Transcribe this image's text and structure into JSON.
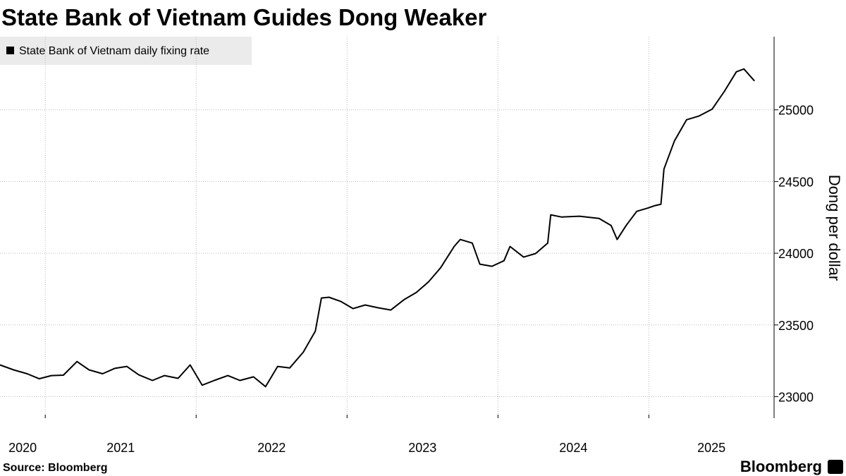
{
  "chart_data": {
    "type": "line",
    "title": "State Bank of Vietnam Guides Dong Weaker",
    "y_axis_label": "Dong per dollar",
    "source": "Source: Bloomberg",
    "brand": "Bloomberg",
    "grid": true,
    "legend": "top-left",
    "xlim": [
      2020.7,
      2025.83
    ],
    "xticks": [
      2020,
      2021,
      2022,
      2023,
      2024,
      2025
    ],
    "ylim": [
      22850,
      25510
    ],
    "yticks": [
      23000,
      23500,
      24000,
      24500,
      25000
    ],
    "x": [
      2020.7,
      2020.79,
      2020.88,
      2020.96,
      2021.04,
      2021.12,
      2021.21,
      2021.29,
      2021.38,
      2021.46,
      2021.54,
      2021.62,
      2021.71,
      2021.79,
      2021.88,
      2021.96,
      2022.04,
      2022.12,
      2022.21,
      2022.29,
      2022.38,
      2022.46,
      2022.54,
      2022.62,
      2022.71,
      2022.79,
      2022.83,
      2022.88,
      2022.96,
      2023.04,
      2023.12,
      2023.21,
      2023.29,
      2023.38,
      2023.46,
      2023.54,
      2023.62,
      2023.71,
      2023.75,
      2023.83,
      2023.88,
      2023.96,
      2024.04,
      2024.08,
      2024.17,
      2024.25,
      2024.33,
      2024.35,
      2024.42,
      2024.54,
      2024.67,
      2024.75,
      2024.79,
      2024.85,
      2024.92,
      2025.0,
      2025.04,
      2025.08,
      2025.1,
      2025.17,
      2025.25,
      2025.33,
      2025.42,
      2025.5,
      2025.58,
      2025.63,
      2025.7
    ],
    "series": [
      {
        "name": "State Bank of Vietnam daily fixing rate",
        "color": "#000000",
        "values": [
          23221,
          23187,
          23160,
          23125,
          23147,
          23150,
          23245,
          23187,
          23160,
          23197,
          23211,
          23152,
          23113,
          23147,
          23128,
          23221,
          23080,
          23113,
          23147,
          23113,
          23138,
          23070,
          23211,
          23200,
          23310,
          23457,
          23688,
          23693,
          23663,
          23614,
          23639,
          23619,
          23604,
          23678,
          23727,
          23801,
          23899,
          24047,
          24096,
          24071,
          23924,
          23909,
          23948,
          24047,
          23973,
          23998,
          24071,
          24268,
          24253,
          24258,
          24243,
          24194,
          24096,
          24194,
          24292,
          24317,
          24332,
          24342,
          24587,
          24784,
          24931,
          24956,
          25005,
          25128,
          25265,
          25285,
          25201
        ]
      }
    ]
  }
}
